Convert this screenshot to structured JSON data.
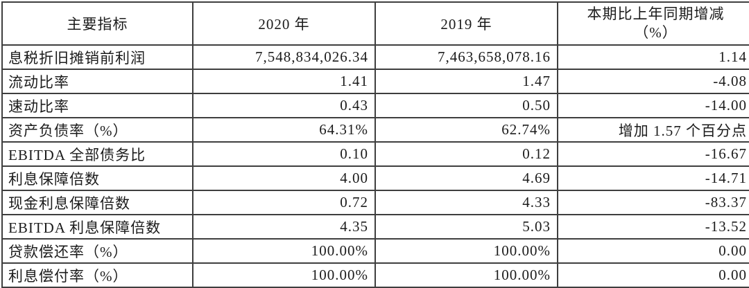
{
  "table": {
    "columns": {
      "indicator": "主要指标",
      "y2020": "2020 年",
      "y2019": "2019 年",
      "change_line1": "本期比上年同期增减",
      "change_line2": "（%）"
    },
    "rows": [
      {
        "indicator": "息税折旧摊销前利润",
        "y2020": "7,548,834,026.34",
        "y2019": "7,463,658,078.16",
        "change": "1.14"
      },
      {
        "indicator": "流动比率",
        "y2020": "1.41",
        "y2019": "1.47",
        "change": "-4.08"
      },
      {
        "indicator": "速动比率",
        "y2020": "0.43",
        "y2019": "0.50",
        "change": "-14.00"
      },
      {
        "indicator": "资产负债率（%）",
        "y2020": "64.31%",
        "y2019": "62.74%",
        "change": "增加 1.57 个百分点"
      },
      {
        "indicator": "EBITDA 全部债务比",
        "y2020": "0.10",
        "y2019": "0.12",
        "change": "-16.67"
      },
      {
        "indicator": "利息保障倍数",
        "y2020": "4.00",
        "y2019": "4.69",
        "change": "-14.71"
      },
      {
        "indicator": "现金利息保障倍数",
        "y2020": "0.72",
        "y2019": "4.33",
        "change": "-83.37"
      },
      {
        "indicator": "EBITDA 利息保障倍数",
        "y2020": "4.35",
        "y2019": "5.03",
        "change": "-13.52"
      },
      {
        "indicator": "贷款偿还率（%）",
        "y2020": "100.00%",
        "y2019": "100.00%",
        "change": "0.00"
      },
      {
        "indicator": "利息偿付率（%）",
        "y2020": "100.00%",
        "y2019": "100.00%",
        "change": "0.00"
      }
    ],
    "colors": {
      "border": "#3e3e3e",
      "text": "#1b1b1b",
      "background": "#ffffff"
    }
  }
}
